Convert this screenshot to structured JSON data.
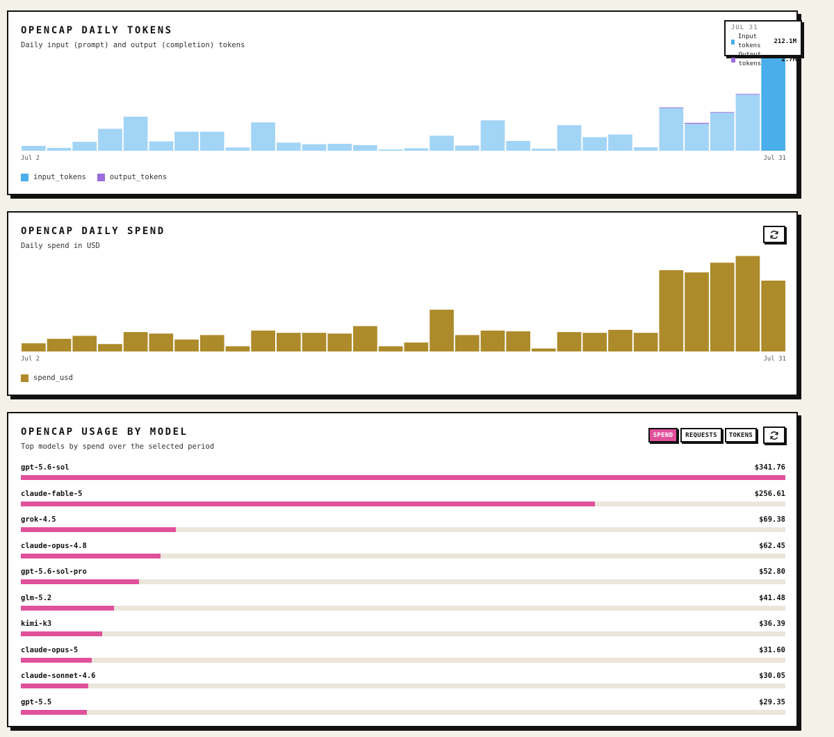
{
  "tokens": {
    "title": "OPENCAP DAILY TOKENS",
    "subtitle": "Daily input (prompt) and output (completion) tokens",
    "tooltip": {
      "date": "JUL 31",
      "input_label": "Input tokens",
      "input_value": "212.1M",
      "output_label": "Output tokens",
      "output_value": "2.7M"
    },
    "legend": [
      "input_tokens",
      "output_tokens"
    ]
  },
  "spend": {
    "title": "OPENCAP DAILY SPEND",
    "subtitle": "Daily spend in USD",
    "legend": [
      "spend_usd"
    ]
  },
  "models": {
    "title": "OPENCAP USAGE BY MODEL",
    "subtitle": "Top models by spend over the selected period",
    "tabs": [
      "SPEND",
      "REQUESTS",
      "TOKENS"
    ],
    "active_tab": "SPEND"
  },
  "colors": {
    "input": "#4aaeea",
    "input_muted": "#a2d4f6",
    "output": "#9b6be0",
    "spend": "#ad8a2a",
    "model_bar": "#e0509b",
    "track": "#ebe5da"
  },
  "icons": {
    "refresh": "refresh-icon"
  },
  "chart_data": [
    {
      "type": "bar",
      "title": "OPENCAP DAILY TOKENS",
      "subtitle": "Daily input (prompt) and output (completion) tokens",
      "x_tick_labels": [
        "Jul 2",
        "Jul 31"
      ],
      "categories": [
        "Jul 2",
        "Jul 3",
        "Jul 4",
        "Jul 5",
        "Jul 6",
        "Jul 7",
        "Jul 8",
        "Jul 9",
        "Jul 10",
        "Jul 11",
        "Jul 12",
        "Jul 13",
        "Jul 14",
        "Jul 15",
        "Jul 16",
        "Jul 17",
        "Jul 18",
        "Jul 19",
        "Jul 20",
        "Jul 21",
        "Jul 22",
        "Jul 23",
        "Jul 24",
        "Jul 25",
        "Jul 26",
        "Jul 27",
        "Jul 28",
        "Jul 29",
        "Jul 30",
        "Jul 31"
      ],
      "stacked": true,
      "highlighted": "Jul 31",
      "series": [
        {
          "name": "input_tokens",
          "values": [
            10.6,
            6.2,
            19.5,
            47.9,
            74.5,
            20.4,
            41.7,
            41.7,
            7.1,
            62.0,
            17.7,
            14.2,
            15.1,
            12.4,
            2.7,
            5.3,
            32.8,
            11.5,
            66.5,
            21.3,
            4.4,
            55.9,
            29.7,
            35.5,
            7.5,
            93.2,
            58.8,
            82.9,
            122.5,
            212.1
          ]
        },
        {
          "name": "output_tokens",
          "values": [
            0,
            0,
            0,
            0,
            0,
            0,
            0,
            0,
            0,
            0,
            0,
            0,
            0,
            0,
            0,
            0,
            0,
            0,
            0,
            0,
            0,
            0,
            0,
            0,
            0,
            1.4,
            2.1,
            1.2,
            1.5,
            2.7
          ]
        }
      ],
      "ylim": [
        0,
        220
      ],
      "grid": false,
      "legend_position": "bottom-left"
    },
    {
      "type": "bar",
      "title": "OPENCAP DAILY SPEND",
      "subtitle": "Daily spend in USD",
      "x_tick_labels": [
        "Jul 2",
        "Jul 31"
      ],
      "categories": [
        "Jul 2",
        "Jul 3",
        "Jul 4",
        "Jul 5",
        "Jul 6",
        "Jul 7",
        "Jul 8",
        "Jul 9",
        "Jul 10",
        "Jul 11",
        "Jul 12",
        "Jul 13",
        "Jul 14",
        "Jul 15",
        "Jul 16",
        "Jul 17",
        "Jul 18",
        "Jul 19",
        "Jul 20",
        "Jul 21",
        "Jul 22",
        "Jul 23",
        "Jul 24",
        "Jul 25",
        "Jul 26",
        "Jul 27",
        "Jul 28",
        "Jul 29",
        "Jul 30",
        "Jul 31"
      ],
      "series": [
        {
          "name": "spend_usd",
          "values": [
            11,
            17,
            21,
            10,
            26,
            24,
            16,
            22,
            7,
            28,
            25,
            25,
            24,
            34,
            7,
            12,
            56,
            22,
            28,
            27,
            4,
            26,
            25,
            29,
            25,
            109,
            106,
            119,
            128,
            95
          ]
        }
      ],
      "ylim": [
        0,
        135
      ],
      "grid": false,
      "legend_position": "bottom-left"
    },
    {
      "type": "bar",
      "orientation": "horizontal",
      "title": "OPENCAP USAGE BY MODEL",
      "subtitle": "Top models by spend over the selected period",
      "categories": [
        "gpt-5.6-sol",
        "claude-fable-5",
        "grok-4.5",
        "claude-opus-4.8",
        "gpt-5.6-sol-pro",
        "glm-5.2",
        "kimi-k3",
        "claude-opus-5",
        "claude-sonnet-4.6",
        "gpt-5.5"
      ],
      "labels": [
        "$341.76",
        "$256.61",
        "$69.38",
        "$62.45",
        "$52.80",
        "$41.48",
        "$36.39",
        "$31.60",
        "$30.05",
        "$29.35"
      ],
      "values": [
        341.76,
        256.61,
        69.38,
        62.45,
        52.8,
        41.48,
        36.39,
        31.6,
        30.05,
        29.35
      ],
      "xlim": [
        0,
        341.76
      ]
    }
  ]
}
